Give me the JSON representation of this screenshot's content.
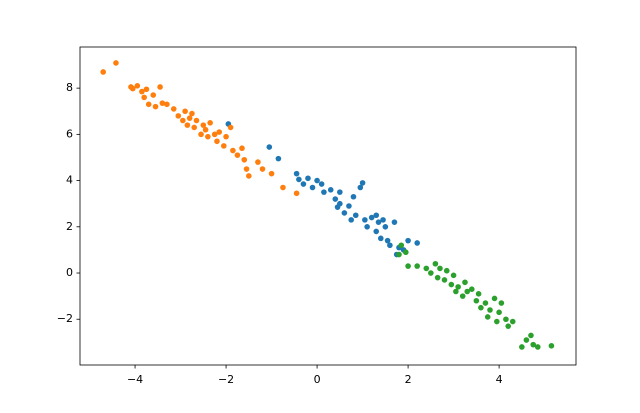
{
  "chart_data": {
    "type": "scatter",
    "xlim": [
      -5.21,
      5.69
    ],
    "ylim": [
      -3.98,
      9.78
    ],
    "xticks": [
      {
        "value": -4,
        "label": "−4"
      },
      {
        "value": -2,
        "label": "−2"
      },
      0,
      2,
      4
    ],
    "yticks": [
      {
        "value": -2,
        "label": "−2"
      },
      0,
      2,
      4,
      6,
      8
    ],
    "series": [
      {
        "color": "#1f77b4",
        "x": [
          -1.95,
          -1.05,
          -0.85,
          -0.45,
          -0.4,
          -0.3,
          -0.2,
          -0.1,
          0.0,
          0.1,
          0.15,
          0.3,
          0.4,
          0.45,
          0.5,
          0.6,
          0.7,
          0.75,
          0.8,
          0.85,
          0.95,
          1.0,
          1.05,
          1.1,
          1.2,
          1.3,
          1.35,
          1.4,
          1.5,
          1.55,
          1.6,
          1.7,
          1.75,
          1.8,
          1.9,
          2.0,
          2.2,
          1.3,
          0.5,
          1.45
        ],
        "values": [
          6.45,
          5.45,
          4.95,
          4.3,
          4.05,
          3.85,
          4.1,
          3.7,
          4.0,
          3.85,
          3.5,
          3.6,
          3.2,
          2.85,
          3.0,
          2.6,
          2.9,
          2.3,
          3.3,
          2.5,
          3.7,
          3.9,
          2.3,
          2.0,
          2.4,
          1.8,
          2.2,
          1.5,
          2.0,
          1.4,
          1.2,
          2.2,
          0.8,
          1.1,
          1.0,
          1.4,
          1.3,
          2.5,
          3.5,
          2.3
        ]
      },
      {
        "color": "#ff7f0e",
        "x": [
          -4.7,
          -4.42,
          -4.09,
          -4.05,
          -3.95,
          -3.85,
          -3.8,
          -3.75,
          -3.7,
          -3.6,
          -3.55,
          -3.45,
          -3.4,
          -3.3,
          -3.15,
          -3.05,
          -2.95,
          -2.9,
          -2.85,
          -2.8,
          -2.75,
          -2.7,
          -2.65,
          -2.55,
          -2.5,
          -2.45,
          -2.4,
          -2.35,
          -2.25,
          -2.2,
          -2.15,
          -2.05,
          -2.0,
          -1.9,
          -1.85,
          -1.75,
          -1.65,
          -1.6,
          -1.55,
          -1.5,
          -1.3,
          -1.2,
          -1.0,
          -0.75,
          -0.45
        ],
        "values": [
          8.7,
          9.09,
          8.05,
          7.98,
          8.1,
          7.85,
          7.6,
          7.95,
          7.3,
          7.7,
          7.2,
          8.05,
          7.35,
          7.3,
          7.1,
          6.8,
          6.6,
          7.0,
          6.4,
          6.7,
          6.9,
          6.3,
          6.6,
          6.0,
          6.4,
          6.2,
          5.9,
          6.5,
          6.0,
          5.7,
          6.1,
          5.5,
          5.9,
          6.3,
          5.3,
          5.1,
          5.4,
          4.9,
          4.5,
          4.2,
          4.8,
          4.5,
          4.3,
          3.7,
          3.45
        ]
      },
      {
        "color": "#2ca02c",
        "x": [
          1.8,
          1.85,
          1.95,
          2.0,
          2.2,
          2.4,
          2.5,
          2.6,
          2.65,
          2.7,
          2.8,
          2.85,
          2.95,
          3.0,
          3.05,
          3.1,
          3.2,
          3.25,
          3.3,
          3.4,
          3.5,
          3.55,
          3.6,
          3.7,
          3.75,
          3.8,
          3.9,
          3.95,
          4.0,
          4.05,
          4.15,
          4.2,
          4.3,
          4.5,
          4.6,
          4.7,
          4.85,
          5.15,
          4.75
        ],
        "values": [
          0.8,
          1.2,
          0.9,
          0.3,
          0.3,
          0.2,
          0.0,
          0.4,
          -0.2,
          0.2,
          -0.3,
          0.1,
          -0.5,
          -0.1,
          -0.8,
          -0.6,
          -1.0,
          -0.4,
          -0.8,
          -0.7,
          -1.2,
          -0.9,
          -1.5,
          -1.3,
          -1.9,
          -1.6,
          -1.1,
          -2.1,
          -1.7,
          -1.3,
          -2.0,
          -2.3,
          -2.1,
          -3.2,
          -2.9,
          -2.7,
          -3.2,
          -3.15,
          -3.1
        ]
      }
    ]
  }
}
